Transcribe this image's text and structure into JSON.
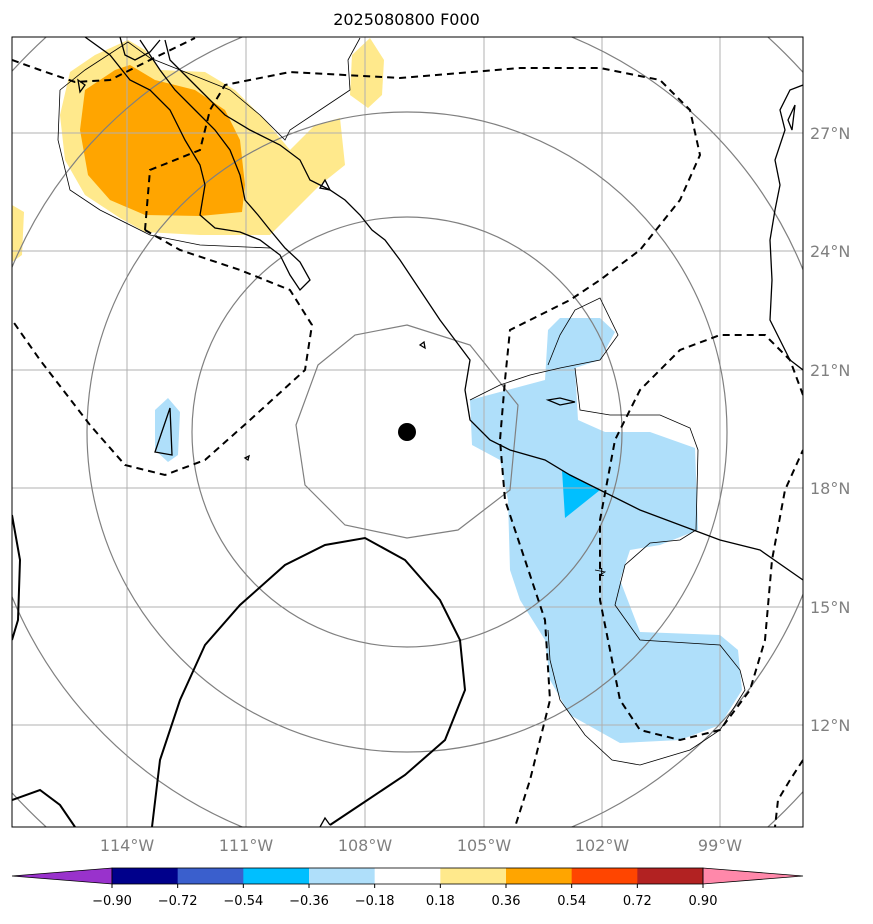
{
  "title": "2025080800 F000",
  "map": {
    "lat_labels": [
      "27°N",
      "24°N",
      "21°N",
      "18°N",
      "15°N",
      "12°N"
    ],
    "lon_labels": [
      "114°W",
      "111°W",
      "108°W",
      "105°W",
      "102°W",
      "99°W"
    ],
    "contour_label": "1",
    "colors": {
      "pos_light": "#ffe98c",
      "pos_dark": "#ffa500",
      "neg_light": "#afdffa",
      "neg_dark": "#00bfff",
      "coast": "#000000",
      "range_rings": "#808080",
      "grid": "#b0b0b0"
    },
    "storm_center": {
      "lat": 19.5,
      "lon": "107°W"
    }
  },
  "colorbar": {
    "ticks": [
      "−0.90",
      "−0.72",
      "−0.54",
      "−0.36",
      "−0.18",
      "0.18",
      "0.36",
      "0.54",
      "0.72",
      "0.90"
    ],
    "colors": [
      "#9932cc",
      "#00008b",
      "#3a5fcd",
      "#00bfff",
      "#afdffa",
      "#ffffff",
      "#ffe98c",
      "#ffa500",
      "#ff4500",
      "#b22222",
      "#ff88aa"
    ]
  }
}
